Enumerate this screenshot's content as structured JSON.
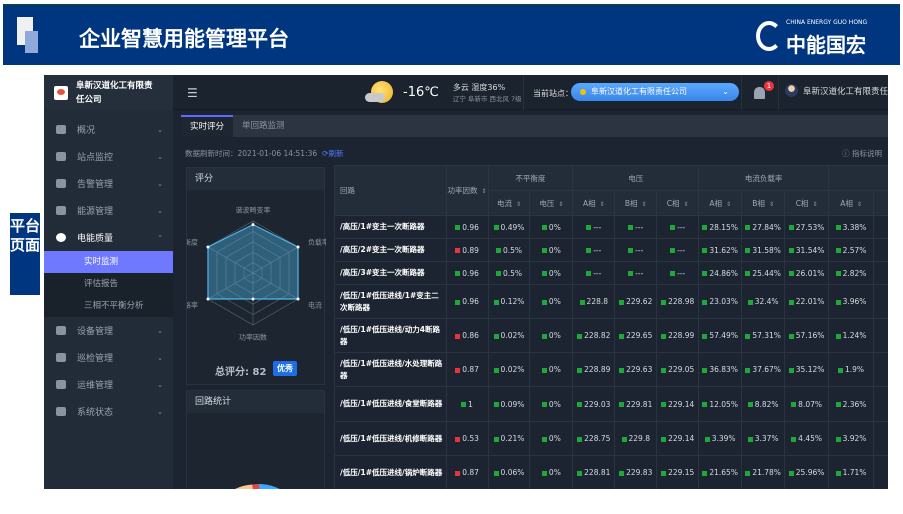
{
  "banner": {
    "title": "企业智慧用能管理平台",
    "logo_en": "CHINA ENERGY GUO HONG",
    "logo_cn": "中能国宏"
  },
  "side_label": "平台页面",
  "app": {
    "company": "阜新汉道化工有限责任公司",
    "nav": [
      {
        "label": "概况",
        "icon": "overview-icon"
      },
      {
        "label": "站点监控",
        "icon": "gauge-icon"
      },
      {
        "label": "告警管理",
        "icon": "alarm-icon"
      },
      {
        "label": "能源管理",
        "icon": "energy-tree-icon"
      },
      {
        "label": "电能质量",
        "icon": "power-quality-icon",
        "open": true,
        "children": [
          {
            "label": "实时监测",
            "active": true
          },
          {
            "label": "评估报告"
          },
          {
            "label": "三相不平衡分析"
          }
        ]
      },
      {
        "label": "设备管理",
        "icon": "cube-icon"
      },
      {
        "label": "巡检管理",
        "icon": "bar-chart-icon"
      },
      {
        "label": "运维管理",
        "icon": "tools-icon"
      },
      {
        "label": "系统状态",
        "icon": "bar-chart-icon"
      }
    ],
    "header": {
      "temp": "-16℃",
      "weather": "多云 湿度36%",
      "location": "辽宁 阜新市 西北风 7级",
      "site_label": "当前站点：",
      "site_value": "阜新汉道化工有限责任公司",
      "notifications": "1",
      "user": "阜新汉道化工有限责任公"
    },
    "tabs": [
      "实时评分",
      "单回路监测"
    ],
    "refresh": {
      "label": "数据刷新时间：2021-01-06 14:51:36",
      "button": "刷新"
    },
    "help": "ⓘ 指标说明",
    "score_panel": {
      "title": "评分",
      "total": "总评分: 82",
      "grade": "优秀"
    },
    "loop_panel": {
      "title": "回路统计"
    },
    "status_colors": {
      "ok": "#1fa83a",
      "bad": "#e8333a"
    },
    "table": {
      "headers": {
        "route": "回路",
        "pf": "功率因数",
        "unbalance": "不平衡度",
        "voltage": "电压",
        "load": "电流负载率",
        "current": "电流",
        "volt": "电压",
        "a": "A相",
        "b": "B相",
        "c": "C相"
      },
      "rows": [
        {
          "name": "/高压/1#变主一次断路器",
          "pf": [
            "0.96",
            "ok"
          ],
          "vals": [
            "0.49%",
            "0%",
            "---",
            "---",
            "---",
            "28.15%",
            "27.84%",
            "27.53%",
            "3.38%"
          ]
        },
        {
          "name": "/高压/2#变主一次断路器",
          "pf": [
            "0.89",
            "bad"
          ],
          "vals": [
            "0.5%",
            "0%",
            "---",
            "---",
            "---",
            "31.62%",
            "31.58%",
            "31.54%",
            "2.57%"
          ]
        },
        {
          "name": "/高压/3#变主一次断路器",
          "pf": [
            "0.96",
            "ok"
          ],
          "vals": [
            "0.5%",
            "0%",
            "---",
            "---",
            "---",
            "24.86%",
            "25.44%",
            "26.01%",
            "2.82%"
          ]
        },
        {
          "name": "/低压/1#低压进线/1#变主二次断路器",
          "pf": [
            "0.96",
            "ok"
          ],
          "vals": [
            "0.12%",
            "0%",
            "228.8",
            "229.62",
            "228.98",
            "23.03%",
            "32.4%",
            "22.01%",
            "3.96%"
          ]
        },
        {
          "name": "/低压/1#低压进线/动力4断路器",
          "pf": [
            "0.86",
            "bad"
          ],
          "vals": [
            "0.02%",
            "0%",
            "228.82",
            "229.65",
            "228.99",
            "57.49%",
            "57.31%",
            "57.16%",
            "1.24%"
          ]
        },
        {
          "name": "/低压/1#低压进线/水处理断路器",
          "pf": [
            "0.87",
            "bad"
          ],
          "vals": [
            "0.02%",
            "0%",
            "228.89",
            "229.63",
            "229.05",
            "36.83%",
            "37.67%",
            "35.12%",
            "1.9%"
          ]
        },
        {
          "name": "/低压/1#低压进线/食堂断路器",
          "pf": [
            "1",
            "ok"
          ],
          "vals": [
            "0.09%",
            "0%",
            "229.03",
            "229.81",
            "229.14",
            "12.05%",
            "8.82%",
            "8.07%",
            "2.36%"
          ]
        },
        {
          "name": "/低压/1#低压进线/机修断路器",
          "pf": [
            "0.53",
            "bad"
          ],
          "vals": [
            "0.21%",
            "0%",
            "228.75",
            "229.8",
            "229.14",
            "3.39%",
            "3.37%",
            "4.45%",
            "3.92%"
          ]
        },
        {
          "name": "/低压/1#低压进线/锅炉断路器",
          "pf": [
            "0.87",
            "bad"
          ],
          "vals": [
            "0.06%",
            "0%",
            "228.81",
            "229.83",
            "229.15",
            "21.65%",
            "21.78%",
            "25.96%",
            "1.71%"
          ]
        }
      ]
    }
  },
  "chart_data": [
    {
      "type": "radar",
      "indicators": [
        "谐波畸变率",
        "负载率",
        "电流",
        "功率因数",
        "合格率",
        "平衡度"
      ],
      "values": [
        93,
        100,
        100,
        50,
        100,
        100
      ],
      "range": [
        0,
        100
      ],
      "color": "#4fb6e8"
    },
    {
      "type": "pie",
      "style": "donut",
      "colors": [
        "#3ea6ff",
        "#f6c98a",
        "#e8444f"
      ]
    }
  ]
}
